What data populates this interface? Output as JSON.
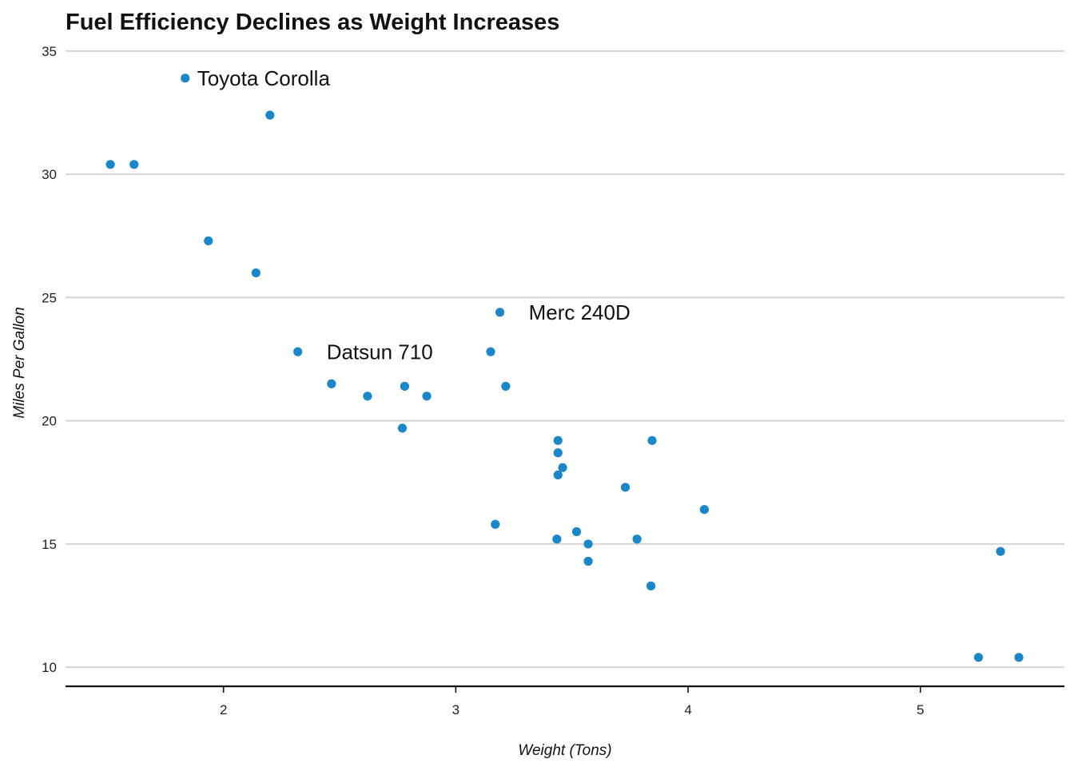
{
  "chart_data": {
    "type": "scatter",
    "title": "Fuel Efficiency Declines as Weight Increases",
    "xlabel": "Weight (Tons)",
    "ylabel": "Miles Per Gallon",
    "xlim": [
      1.32,
      5.62
    ],
    "ylim": [
      9.26,
      35.45
    ],
    "xticks": [
      2,
      3,
      4,
      5
    ],
    "yticks": [
      10,
      15,
      20,
      25,
      30,
      35
    ],
    "grid": "horizontal",
    "color": "#1b86c8",
    "points": [
      {
        "x": 2.62,
        "y": 21.0
      },
      {
        "x": 2.875,
        "y": 21.0
      },
      {
        "x": 2.32,
        "y": 22.8,
        "label": "Datsun 710"
      },
      {
        "x": 3.215,
        "y": 21.4
      },
      {
        "x": 3.44,
        "y": 18.7
      },
      {
        "x": 3.46,
        "y": 18.1
      },
      {
        "x": 3.57,
        "y": 14.3
      },
      {
        "x": 3.19,
        "y": 24.4,
        "label": "Merc 240D"
      },
      {
        "x": 3.15,
        "y": 22.8
      },
      {
        "x": 3.44,
        "y": 19.2
      },
      {
        "x": 3.44,
        "y": 17.8
      },
      {
        "x": 4.07,
        "y": 16.4
      },
      {
        "x": 3.73,
        "y": 17.3
      },
      {
        "x": 3.78,
        "y": 15.2
      },
      {
        "x": 5.25,
        "y": 10.4
      },
      {
        "x": 5.424,
        "y": 10.4
      },
      {
        "x": 5.345,
        "y": 14.7
      },
      {
        "x": 2.2,
        "y": 32.4
      },
      {
        "x": 1.615,
        "y": 30.4
      },
      {
        "x": 1.835,
        "y": 33.9,
        "label": "Toyota Corolla"
      },
      {
        "x": 2.465,
        "y": 21.5
      },
      {
        "x": 3.52,
        "y": 15.5
      },
      {
        "x": 3.435,
        "y": 15.2
      },
      {
        "x": 3.84,
        "y": 13.3
      },
      {
        "x": 3.845,
        "y": 19.2
      },
      {
        "x": 1.935,
        "y": 27.3
      },
      {
        "x": 2.14,
        "y": 26.0
      },
      {
        "x": 1.513,
        "y": 30.4
      },
      {
        "x": 3.17,
        "y": 15.8
      },
      {
        "x": 2.77,
        "y": 19.7
      },
      {
        "x": 3.57,
        "y": 15.0
      },
      {
        "x": 2.78,
        "y": 21.4
      }
    ]
  }
}
